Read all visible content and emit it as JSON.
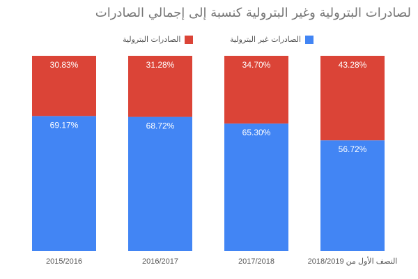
{
  "chart_data": {
    "type": "bar",
    "stacked": true,
    "percent": true,
    "title": "لصادرات البترولية وغير البترولية كنسبة إلى إجمالي الصادرات",
    "categories": [
      "2015/2016",
      "2016/2017",
      "2017/2018",
      "النصف الأول من 2018/2019"
    ],
    "series": [
      {
        "name": "الصادرات غير البترولية",
        "color": "#4285f4",
        "values": [
          69.17,
          68.72,
          65.3,
          56.72
        ]
      },
      {
        "name": "الصادرات البترولية",
        "color": "#db4437",
        "values": [
          30.83,
          31.28,
          34.7,
          43.28
        ]
      }
    ],
    "data_labels": [
      [
        "69.17%",
        "68.72%",
        "65.30%",
        "56.72%"
      ],
      [
        "30.83%",
        "31.28%",
        "34.70%",
        "43.28%"
      ]
    ],
    "ylim": [
      0,
      100
    ],
    "xlabel": "",
    "ylabel": "",
    "grid": false,
    "legend_position": "top"
  }
}
